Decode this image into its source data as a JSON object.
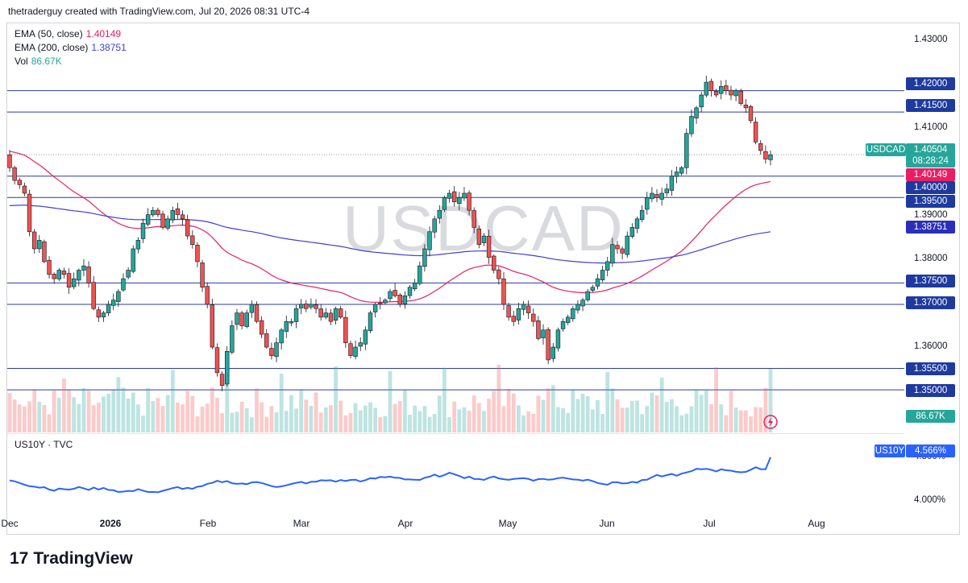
{
  "header": {
    "attribution": "thetraderguy created with TradingView.com, Jul 20, 2026 08:31 UTC-4"
  },
  "legend": [
    {
      "label": "EMA (50, close)",
      "value": "1.40149",
      "color": "#e91e63"
    },
    {
      "label": "EMA (200, close)",
      "value": "1.38751",
      "color": "#3f3fd8"
    },
    {
      "label": "Vol",
      "value": "86.67K",
      "color": "#26a69a"
    }
  ],
  "watermark": "USDCAD",
  "sub_pane": {
    "label": "US10Y · TVC",
    "symbol": "US10Y",
    "value": "4.566%",
    "axis": [
      "4.500%",
      "4.000%"
    ]
  },
  "volume_tag": "86.67K",
  "branding": "TradingView",
  "colors": {
    "up": "#26a69a",
    "down": "#ef5350",
    "ema50": "#e91e63",
    "ema200": "#3f3fd8",
    "hline": "#2a3e9c",
    "us10y": "#2962ff"
  },
  "chart_data": {
    "type": "candlestick",
    "title": "USDCAD",
    "yticks": [
      "1.43000",
      "1.41000",
      "1.39000",
      "1.38000",
      "1.36000"
    ],
    "x_ticks": [
      "Dec",
      "2026",
      "Feb",
      "Mar",
      "Apr",
      "May",
      "Jun",
      "Jul",
      "Aug"
    ],
    "ylim": [
      1.347,
      1.4352
    ],
    "horizontal_levels": [
      "1.42000",
      "1.41500",
      "1.40000",
      "1.39500",
      "1.37500",
      "1.37000",
      "1.35500",
      "1.35000"
    ],
    "current_price": {
      "symbol": "USDCAD",
      "value": "1.40504",
      "countdown": "08:28:24"
    },
    "ema50_tag": "1.40149",
    "ema200_tag": "1.38751",
    "closes": [
      1.402,
      1.399,
      1.398,
      1.396,
      1.387,
      1.383,
      1.385,
      1.38,
      1.377,
      1.376,
      1.378,
      1.377,
      1.374,
      1.376,
      1.378,
      1.379,
      1.375,
      1.369,
      1.367,
      1.368,
      1.37,
      1.371,
      1.373,
      1.376,
      1.378,
      1.383,
      1.385,
      1.389,
      1.391,
      1.392,
      1.391,
      1.388,
      1.39,
      1.392,
      1.391,
      1.39,
      1.386,
      1.384,
      1.38,
      1.374,
      1.37,
      1.36,
      1.354,
      1.351,
      1.359,
      1.365,
      1.368,
      1.365,
      1.368,
      1.37,
      1.366,
      1.363,
      1.36,
      1.358,
      1.361,
      1.364,
      1.366,
      1.366,
      1.369,
      1.37,
      1.369,
      1.37,
      1.369,
      1.367,
      1.368,
      1.366,
      1.369,
      1.367,
      1.361,
      1.358,
      1.36,
      1.361,
      1.364,
      1.368,
      1.37,
      1.37,
      1.371,
      1.373,
      1.372,
      1.37,
      1.372,
      1.374,
      1.375,
      1.379,
      1.383,
      1.387,
      1.39,
      1.392,
      1.395,
      1.396,
      1.394,
      1.395,
      1.396,
      1.392,
      1.388,
      1.384,
      1.386,
      1.381,
      1.378,
      1.376,
      1.37,
      1.367,
      1.366,
      1.369,
      1.37,
      1.368,
      1.366,
      1.362,
      1.364,
      1.357,
      1.36,
      1.364,
      1.366,
      1.367,
      1.369,
      1.37,
      1.371,
      1.373,
      1.374,
      1.376,
      1.378,
      1.38,
      1.384,
      1.383,
      1.382,
      1.386,
      1.388,
      1.39,
      1.392,
      1.395,
      1.396,
      1.395,
      1.396,
      1.397,
      1.4,
      1.401,
      1.402,
      1.41,
      1.414,
      1.416,
      1.419,
      1.422,
      1.42,
      1.419,
      1.421,
      1.42,
      1.419,
      1.42,
      1.417,
      1.416,
      1.413,
      1.408,
      1.406,
      1.404,
      1.405
    ]
  }
}
